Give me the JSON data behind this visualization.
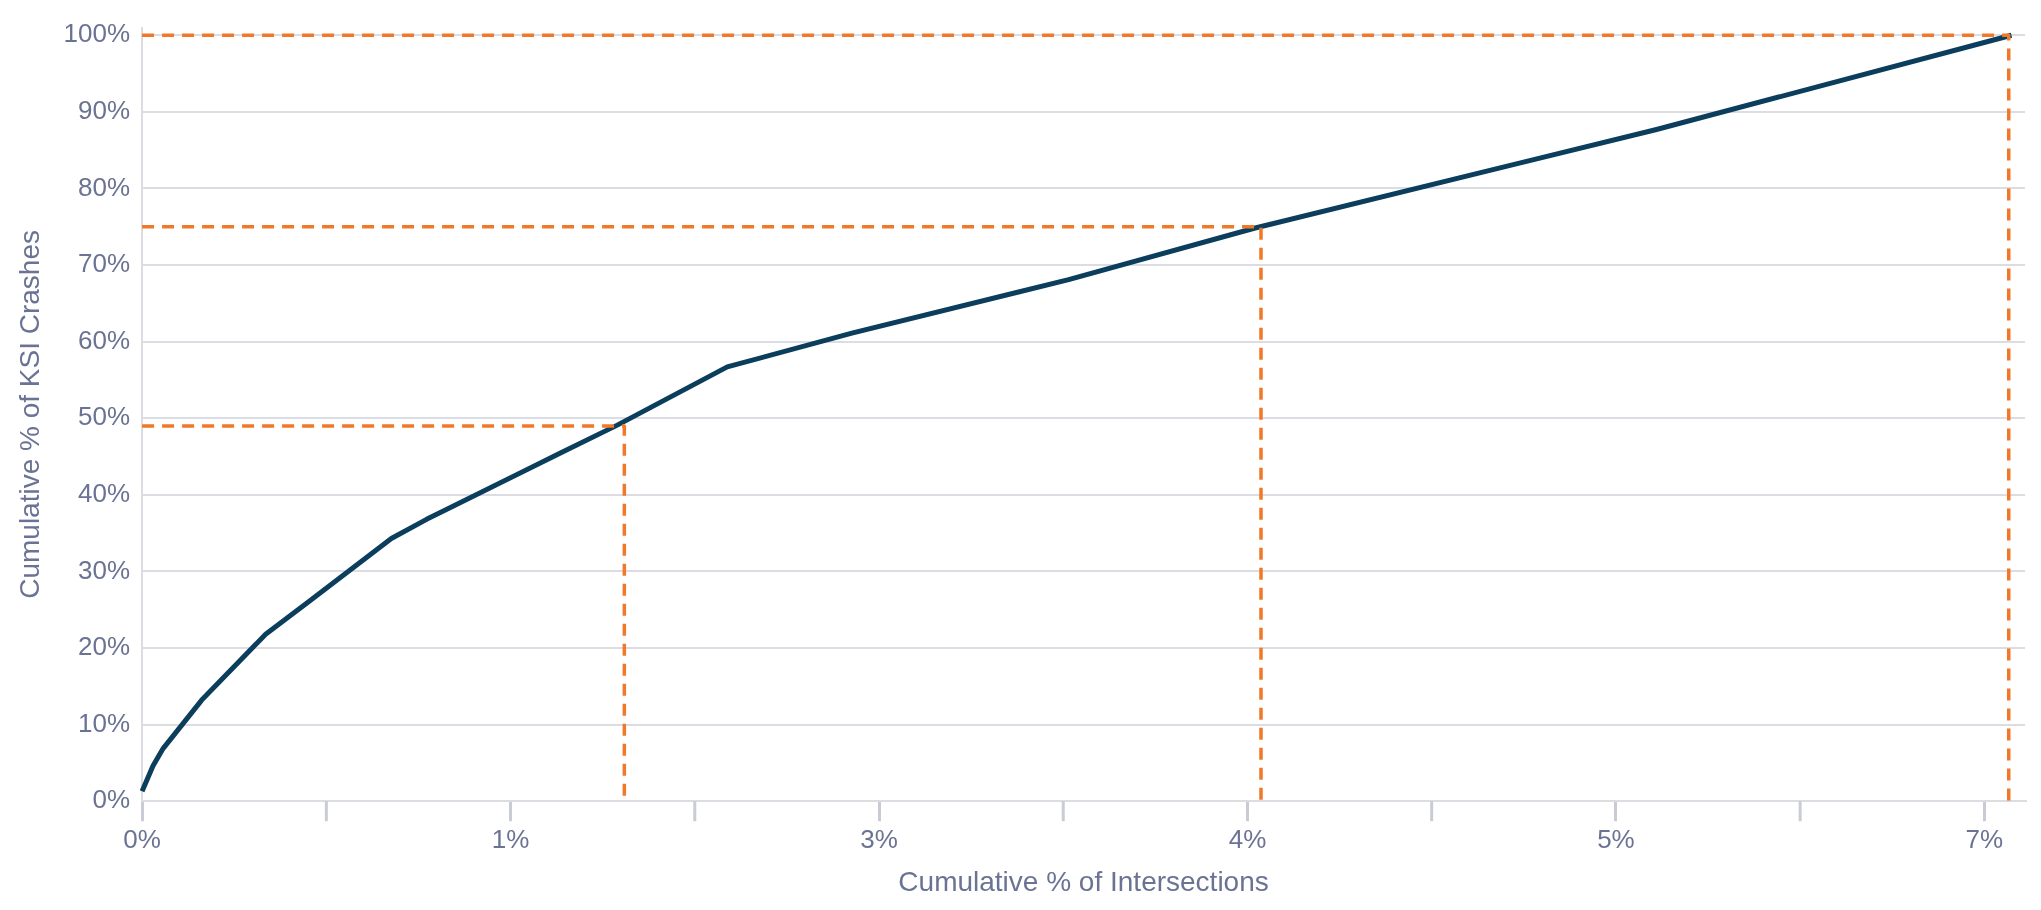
{
  "chart_data": {
    "type": "line",
    "xlabel": "Cumulative % of Intersections",
    "ylabel": "Cumulative % of KSI Crashes",
    "xlim": [
      0,
      6.95
    ],
    "ylim": [
      0,
      101
    ],
    "xticks": [
      {
        "value": 0,
        "label": "0%"
      },
      {
        "value": 1.36,
        "label": "1%"
      },
      {
        "value": 2.72,
        "label": "3%"
      },
      {
        "value": 4.08,
        "label": "4%"
      },
      {
        "value": 5.44,
        "label": "5%"
      },
      {
        "value": 6.8,
        "label": "7%"
      }
    ],
    "yticks": [
      {
        "value": 0,
        "label": "0%"
      },
      {
        "value": 10,
        "label": "10%"
      },
      {
        "value": 20,
        "label": "20%"
      },
      {
        "value": 30,
        "label": "30%"
      },
      {
        "value": 40,
        "label": "40%"
      },
      {
        "value": 50,
        "label": "50%"
      },
      {
        "value": 60,
        "label": "60%"
      },
      {
        "value": 70,
        "label": "70%"
      },
      {
        "value": 80,
        "label": "80%"
      },
      {
        "value": 90,
        "label": "90%"
      },
      {
        "value": 100,
        "label": "100%"
      }
    ],
    "grid": "y",
    "legend": false,
    "marker": "none",
    "series": [
      {
        "color": "#0b3d5c",
        "line_style": "solid",
        "x": [
          0,
          0.04,
          0.078,
          0.22,
          0.456,
          0.617,
          0.92,
          1.05,
          1.546,
          1.754,
          2.16,
          2.62,
          3.42,
          4.105,
          5.59,
          6.9
        ],
        "values": [
          1.3,
          4.6,
          6.9,
          13.2,
          21.8,
          26.1,
          34.3,
          36.8,
          45.5,
          49.1,
          56.7,
          61.1,
          68.1,
          74.8,
          87.7,
          100
        ]
      },
      {
        "color": "#f07828",
        "line_style": "dashed",
        "x": [
          0,
          1.78,
          1.78
        ],
        "values": [
          49,
          49,
          0
        ]
      },
      {
        "color": "#f07828",
        "line_style": "dashed",
        "x": [
          0,
          4.13,
          4.13
        ],
        "values": [
          75,
          75,
          0
        ]
      },
      {
        "color": "#f07828",
        "line_style": "dashed",
        "x": [
          0,
          6.89,
          6.89
        ],
        "values": [
          100,
          100,
          0
        ]
      }
    ]
  }
}
